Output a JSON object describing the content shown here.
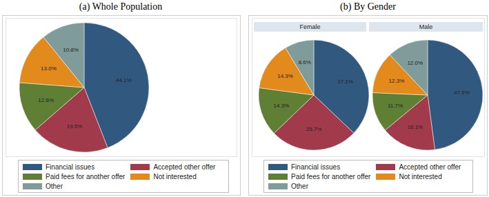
{
  "chart_data": [
    {
      "type": "pie",
      "title": "(a) Whole Population",
      "categories": [
        "Financial issues",
        "Accepted other offer",
        "Paid fees for another offer",
        "Not interested",
        "Other"
      ],
      "values": [
        44.1,
        19.5,
        12.6,
        13.0,
        10.8
      ],
      "value_labels": [
        "44.1%",
        "19.5%",
        "12.6%",
        "13.0%",
        "10.8%"
      ],
      "colors": [
        "#31597f",
        "#a13b4b",
        "#5f7f35",
        "#e38a1c",
        "#7f9c9a"
      ],
      "data_labels": true,
      "legend": "bottom"
    },
    {
      "type": "pie",
      "title": "(b) By Gender",
      "subtitle": "Female",
      "categories": [
        "Financial issues",
        "Accepted other offer",
        "Paid fees for another offer",
        "Not interested",
        "Other"
      ],
      "values": [
        37.1,
        25.7,
        14.3,
        14.3,
        8.6
      ],
      "value_labels": [
        "37.1%",
        "25.7%",
        "14.3%",
        "14.3%",
        "8.6%"
      ],
      "colors": [
        "#31597f",
        "#a13b4b",
        "#5f7f35",
        "#e38a1c",
        "#7f9c9a"
      ],
      "data_labels": true,
      "legend": "bottom"
    },
    {
      "type": "pie",
      "subtitle": "Male",
      "categories": [
        "Financial issues",
        "Accepted other offer",
        "Paid fees for another offer",
        "Not interested",
        "Other"
      ],
      "values": [
        47.9,
        16.1,
        11.7,
        12.3,
        12.0
      ],
      "value_labels": [
        "47.9%",
        "16.1%",
        "11.7%",
        "12.3%",
        "12.0%"
      ],
      "colors": [
        "#31597f",
        "#a13b4b",
        "#5f7f35",
        "#e38a1c",
        "#7f9c9a"
      ],
      "data_labels": true
    }
  ]
}
